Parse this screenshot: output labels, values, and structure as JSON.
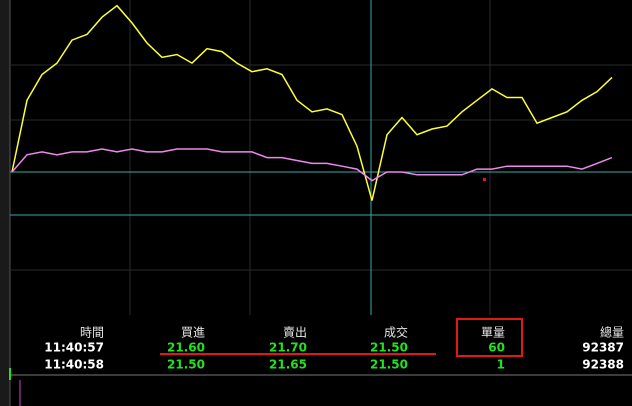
{
  "chart": {
    "type": "line",
    "ylim": [
      21.45,
      22.25
    ],
    "reference_lines": [
      21.65,
      21.5
    ],
    "series": [
      {
        "color": "#ffff33",
        "values": [
          21.65,
          21.9,
          21.99,
          22.03,
          22.11,
          22.13,
          22.19,
          22.23,
          22.17,
          22.1,
          22.05,
          22.06,
          22.03,
          22.08,
          22.07,
          22.03,
          22.0,
          22.01,
          21.99,
          21.9,
          21.86,
          21.87,
          21.85,
          21.74,
          21.55,
          21.78,
          21.84,
          21.78,
          21.8,
          21.81,
          21.86,
          21.9,
          21.94,
          21.91,
          21.91,
          21.82,
          21.84,
          21.86,
          21.9,
          21.93,
          21.98
        ]
      },
      {
        "color": "#ee88ee",
        "values": [
          21.65,
          21.71,
          21.72,
          21.71,
          21.72,
          21.72,
          21.73,
          21.72,
          21.73,
          21.72,
          21.72,
          21.73,
          21.73,
          21.73,
          21.72,
          21.72,
          21.72,
          21.7,
          21.7,
          21.69,
          21.68,
          21.68,
          21.67,
          21.66,
          21.62,
          21.65,
          21.65,
          21.64,
          21.64,
          21.64,
          21.64,
          21.66,
          21.66,
          21.67,
          21.67,
          21.67,
          21.67,
          21.67,
          21.66,
          21.68,
          21.7
        ]
      }
    ]
  },
  "table": {
    "headers": [
      "時間",
      "買進",
      "賣出",
      "成交",
      "單量",
      "總量"
    ],
    "rows": [
      [
        "11:40:57",
        "21.60",
        "21.70",
        "21.50",
        "60",
        "92387"
      ],
      [
        "11:40:58",
        "21.50",
        "21.65",
        "21.50",
        "1",
        "92388"
      ]
    ]
  }
}
